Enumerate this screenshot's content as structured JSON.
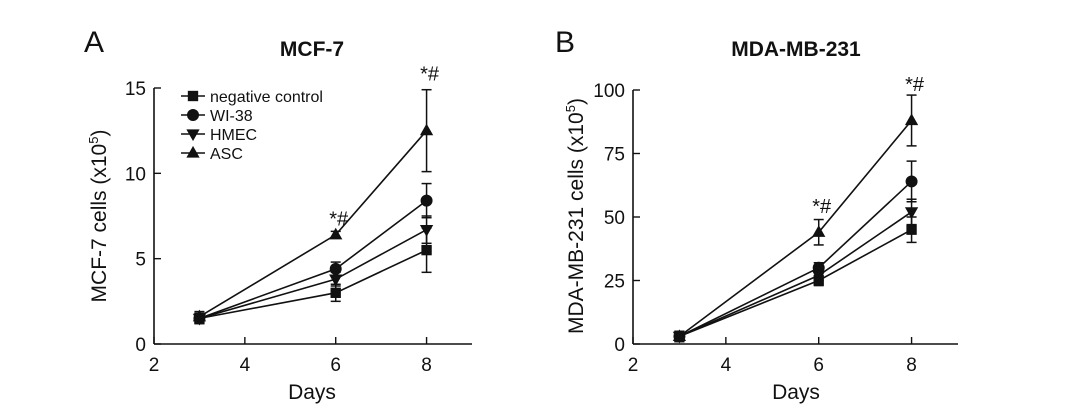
{
  "chart_data": [
    {
      "type": "line",
      "panel": "A",
      "title": "MCF-7",
      "xlabel": "Days",
      "ylabel": "MCF-7 cells (x10",
      "ylabel_exp": "5",
      "ylabel_close": ")",
      "xlim": [
        2,
        9
      ],
      "ylim": [
        0,
        15
      ],
      "xticks": [
        2,
        4,
        6,
        8
      ],
      "yticks": [
        0,
        5,
        10,
        15
      ],
      "x": [
        3,
        6,
        8
      ],
      "series": [
        {
          "name": "negative control",
          "marker": "square",
          "values": [
            1.5,
            3.0,
            5.5
          ],
          "err": [
            0.3,
            0.5,
            1.3
          ]
        },
        {
          "name": "WI-38",
          "marker": "circle",
          "values": [
            1.5,
            4.4,
            8.4
          ],
          "err": [
            0.3,
            0.4,
            1.0
          ]
        },
        {
          "name": "HMEC",
          "marker": "triangle-down",
          "values": [
            1.5,
            3.8,
            6.7
          ],
          "err": [
            0.3,
            0.4,
            0.8
          ]
        },
        {
          "name": "ASC",
          "marker": "triangle-up",
          "values": [
            1.6,
            6.4,
            12.5
          ],
          "err": [
            0.3,
            0.2,
            2.4
          ]
        }
      ],
      "annotations": [
        {
          "text": "*#",
          "x": 6,
          "y": 7.3
        },
        {
          "text": "*#",
          "x": 8,
          "y": 15.8
        }
      ]
    },
    {
      "type": "line",
      "panel": "B",
      "title": "MDA-MB-231",
      "xlabel": "Days",
      "ylabel": "MDA-MB-231 cells (x10",
      "ylabel_exp": "5",
      "ylabel_close": ")",
      "xlim": [
        2,
        9
      ],
      "ylim": [
        0,
        100
      ],
      "xticks": [
        2,
        4,
        6,
        8
      ],
      "yticks": [
        0,
        25,
        50,
        75,
        100
      ],
      "x": [
        3,
        6,
        8
      ],
      "series": [
        {
          "name": "negative control",
          "marker": "square",
          "values": [
            3,
            25,
            45
          ],
          "err": [
            2,
            2,
            5
          ]
        },
        {
          "name": "WI-38",
          "marker": "circle",
          "values": [
            3,
            30,
            64
          ],
          "err": [
            2,
            2,
            8
          ]
        },
        {
          "name": "HMEC",
          "marker": "triangle-down",
          "values": [
            3,
            27,
            52
          ],
          "err": [
            2,
            2,
            5
          ]
        },
        {
          "name": "ASC",
          "marker": "triangle-up",
          "values": [
            3,
            44,
            88
          ],
          "err": [
            2,
            5,
            10
          ]
        }
      ],
      "annotations": [
        {
          "text": "*#",
          "x": 6,
          "y": 54
        },
        {
          "text": "*#",
          "x": 8,
          "y": 102
        }
      ]
    }
  ]
}
